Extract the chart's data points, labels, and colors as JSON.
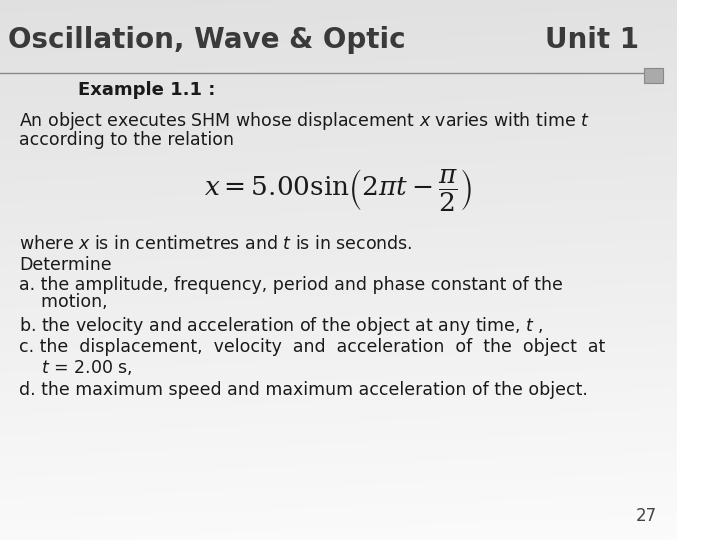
{
  "title_left": "Oscillation, Wave & Optic",
  "title_right": "Unit 1",
  "subtitle": "Example 1.1 :",
  "bg_color": "#f0eeec",
  "line_color": "#888888",
  "title_color": "#3a3a3a",
  "body_color": "#1a1a1a",
  "title_fontsize": 20,
  "subtitle_fontsize": 13,
  "body_fontsize": 12.5,
  "page_number": "27",
  "formula_latex": "x = 5.00\\sin\\!\\left(2\\pi t - \\dfrac{\\pi}{2}\\right)",
  "line1": "An object executes SHM whose displacement $x$ varies with time $t$",
  "line2": "according to the relation",
  "line3": "where $x$ is in centimetres and $t$ is in seconds.",
  "line4": "Determine",
  "line5a": "a. the amplitude, frequency, period and phase constant of the",
  "line5b": "    motion,",
  "line6": "b. the velocity and acceleration of the object at any time, $t$ ,",
  "line7": "c. the  displacement,  velocity  and  acceleration  of  the  object  at",
  "line8": "    $t$ = 2.00 s,",
  "line9": "d. the maximum speed and maximum acceleration of the object.",
  "square_color": "#aaaaaa",
  "square_edge": "#888888"
}
